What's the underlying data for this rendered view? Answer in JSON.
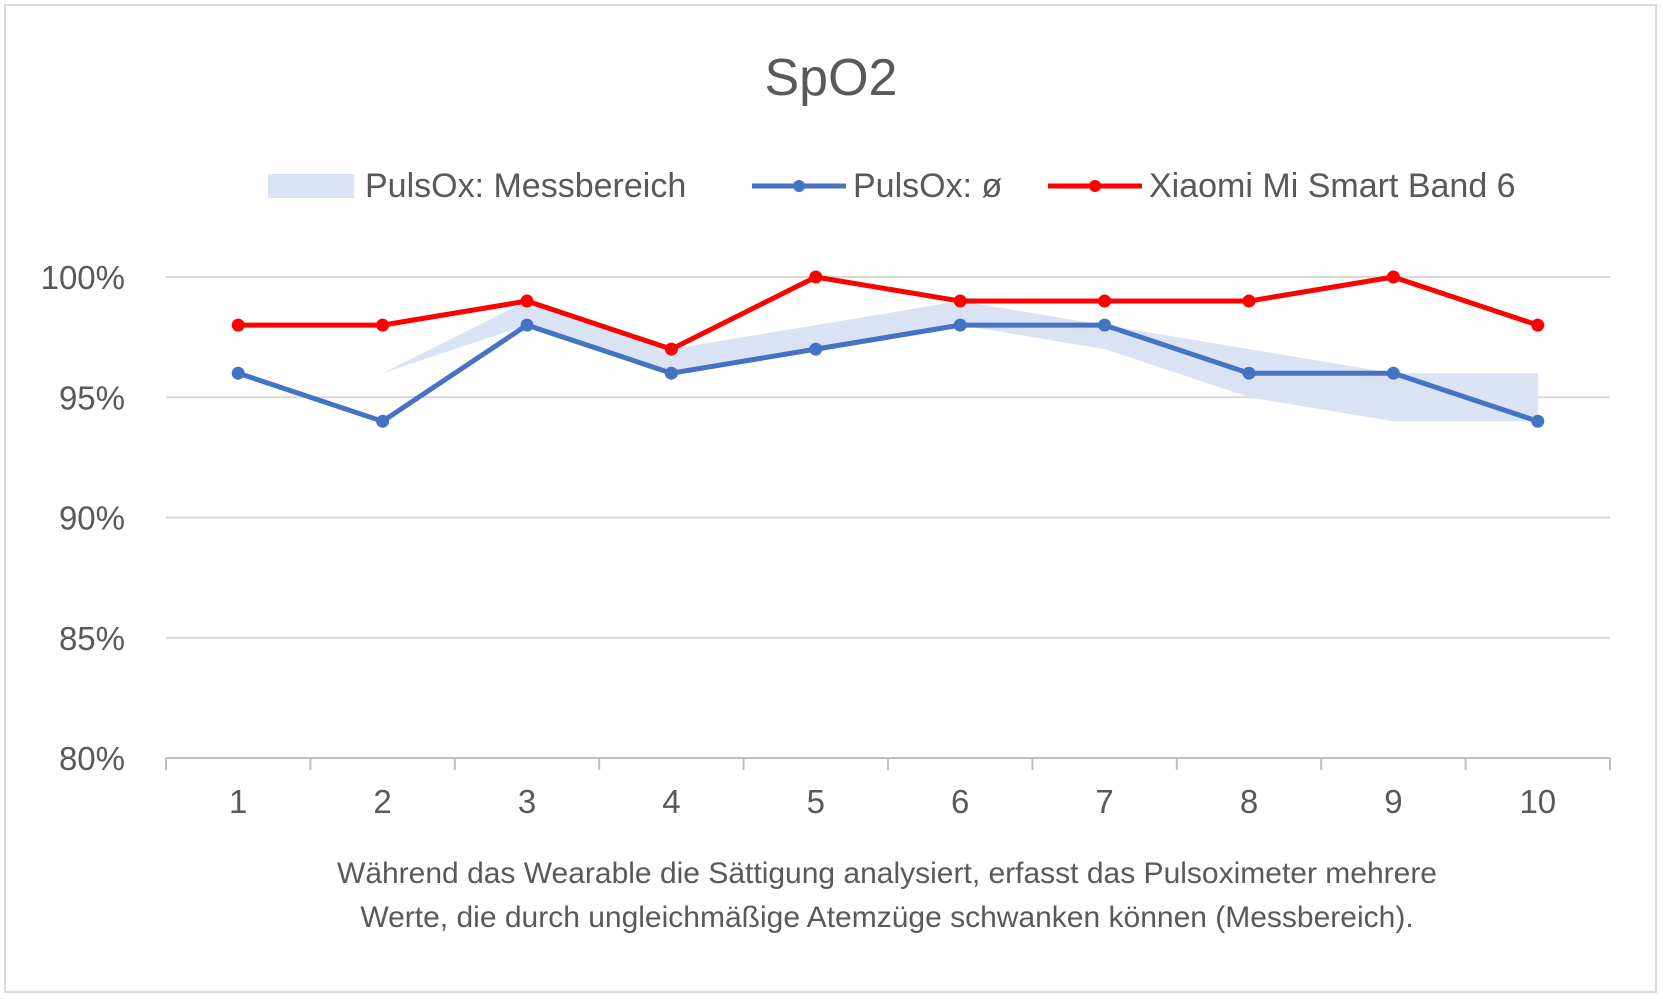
{
  "chart_data": {
    "type": "line",
    "title": "SpO2",
    "xlabel_lines": [
      "Während das Wearable die Sättigung analysiert, erfasst das Pulsoximeter mehrere",
      "Werte, die durch ungleichmäßige Atemzüge schwanken können (Messbereich)."
    ],
    "ylabel": "",
    "categories": [
      "1",
      "2",
      "3",
      "4",
      "5",
      "6",
      "7",
      "8",
      "9",
      "10"
    ],
    "ylim": [
      80,
      100
    ],
    "yticks": [
      80,
      85,
      90,
      95,
      100
    ],
    "ytick_labels": [
      "80%",
      "85%",
      "90%",
      "95%",
      "100%"
    ],
    "grid": true,
    "legend_position": "top",
    "range_series": {
      "name": "PulsOx: Messbereich",
      "color": "#dae3f3",
      "low": [
        96,
        96,
        98,
        96,
        97,
        98,
        97,
        95,
        94,
        94
      ],
      "high": [
        96,
        96,
        99,
        97,
        98,
        99,
        98,
        97,
        96,
        96
      ]
    },
    "series": [
      {
        "name": "PulsOx: ø",
        "color": "#4472c4",
        "values": [
          96,
          94,
          98,
          96,
          97,
          98,
          98,
          96,
          96,
          94
        ]
      },
      {
        "name": "Xiaomi Mi Smart Band 6",
        "color": "#ff0000",
        "values": [
          98,
          98,
          99,
          97,
          100,
          99,
          99,
          99,
          100,
          98
        ]
      }
    ]
  }
}
